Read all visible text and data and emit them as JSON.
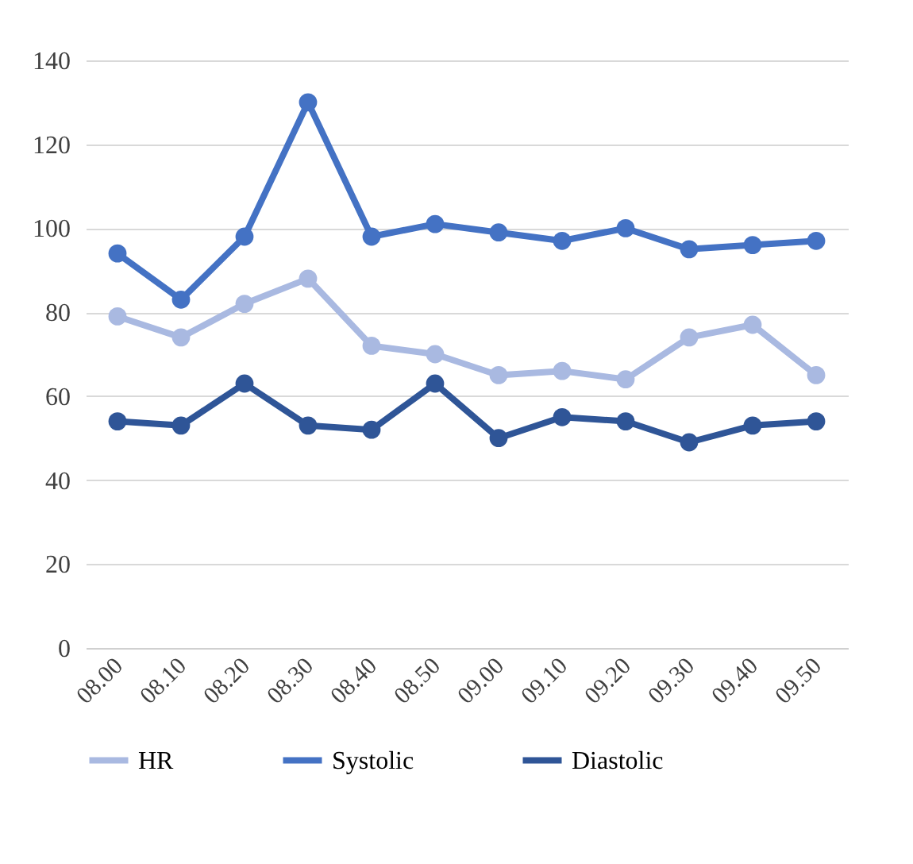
{
  "chart_data": {
    "type": "line",
    "categories": [
      "08.00",
      "08.10",
      "08.20",
      "08.30",
      "08.40",
      "08.50",
      "09.00",
      "09.10",
      "09.20",
      "09.30",
      "09.40",
      "09.50"
    ],
    "series": [
      {
        "name": "HR",
        "color": "#a9b9e1",
        "values": [
          79,
          74,
          82,
          88,
          72,
          70,
          65,
          66,
          64,
          74,
          77,
          65
        ]
      },
      {
        "name": "Systolic",
        "color": "#4472c4",
        "values": [
          94,
          83,
          98,
          130,
          98,
          101,
          99,
          97,
          100,
          95,
          96,
          97
        ]
      },
      {
        "name": "Diastolic",
        "color": "#2f5597",
        "values": [
          54,
          53,
          63,
          53,
          52,
          63,
          50,
          55,
          54,
          49,
          53,
          54
        ]
      }
    ],
    "ylim": [
      0,
      140
    ],
    "yticks": [
      0,
      20,
      40,
      60,
      80,
      100,
      120,
      140
    ],
    "grid": "y",
    "legend": "bottom",
    "marker": "circle",
    "line_style": "solid"
  }
}
